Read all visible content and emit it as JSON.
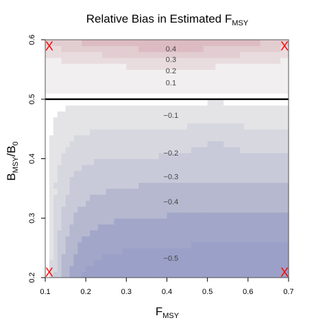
{
  "chart_data": {
    "type": "heatmap",
    "title": {
      "main": "Relative Bias in Estimated F",
      "sub": "MSY"
    },
    "xlabel": {
      "main": "F",
      "sub": "MSY"
    },
    "ylabel": {
      "main1": "B",
      "sub1": "MSY",
      "mid": "/B",
      "sub2": "0"
    },
    "xlim": [
      0.1,
      0.7
    ],
    "ylim": [
      0.2,
      0.6
    ],
    "x_ticks": [
      {
        "value": 0.1,
        "label": "0.1"
      },
      {
        "value": 0.2,
        "label": "0.2"
      },
      {
        "value": 0.3,
        "label": "0.3"
      },
      {
        "value": 0.4,
        "label": "0.4"
      },
      {
        "value": 0.5,
        "label": "0.5"
      },
      {
        "value": 0.6,
        "label": "0.6"
      },
      {
        "value": 0.7,
        "label": "0.7"
      }
    ],
    "y_ticks": [
      {
        "value": 0.2,
        "label": "0.2"
      },
      {
        "value": 0.3,
        "label": "0.3"
      },
      {
        "value": 0.4,
        "label": "0.4"
      },
      {
        "value": 0.5,
        "label": "0.5"
      },
      {
        "value": 0.6,
        "label": "0.6"
      }
    ],
    "reference_line": {
      "y": 0.5,
      "color": "#000000"
    },
    "levels": [
      {
        "value": 0.4,
        "color": "#dcbcc2"
      },
      {
        "value": 0.3,
        "color": "#e2cdd1"
      },
      {
        "value": 0.2,
        "color": "#e9dcdf"
      },
      {
        "value": 0.1,
        "color": "#f1eff0"
      },
      {
        "value": 0.0,
        "color": "#ffffff"
      },
      {
        "value": -0.1,
        "color": "#e4e4e7"
      },
      {
        "value": -0.2,
        "color": "#d7d8df"
      },
      {
        "value": -0.3,
        "color": "#c8cad9"
      },
      {
        "value": -0.4,
        "color": "#b5b8cf"
      },
      {
        "value": -0.5,
        "color": "#a2a7c9"
      },
      {
        "value": -0.6,
        "color": "#9aa0c8"
      }
    ],
    "contour_labels": [
      {
        "text": "0.4",
        "x": 0.41,
        "y": 0.585
      },
      {
        "text": "0.3",
        "x": 0.41,
        "y": 0.567
      },
      {
        "text": "0.2",
        "x": 0.41,
        "y": 0.548
      },
      {
        "text": "0.1",
        "x": 0.41,
        "y": 0.528
      },
      {
        "text": "−0.1",
        "x": 0.41,
        "y": 0.473
      },
      {
        "text": "−0.2",
        "x": 0.41,
        "y": 0.41
      },
      {
        "text": "−0.3",
        "x": 0.41,
        "y": 0.37
      },
      {
        "text": "−0.4",
        "x": 0.41,
        "y": 0.328
      },
      {
        "text": "−0.5",
        "x": 0.41,
        "y": 0.233
      }
    ],
    "markers": [
      {
        "x": 0.11,
        "y": 0.59,
        "label": "X",
        "color": "#ff0000"
      },
      {
        "x": 0.69,
        "y": 0.59,
        "label": "X",
        "color": "#ff0000"
      },
      {
        "x": 0.11,
        "y": 0.21,
        "label": "X",
        "color": "#ff0000"
      },
      {
        "x": 0.69,
        "y": 0.21,
        "label": "X",
        "color": "#ff0000"
      }
    ]
  }
}
